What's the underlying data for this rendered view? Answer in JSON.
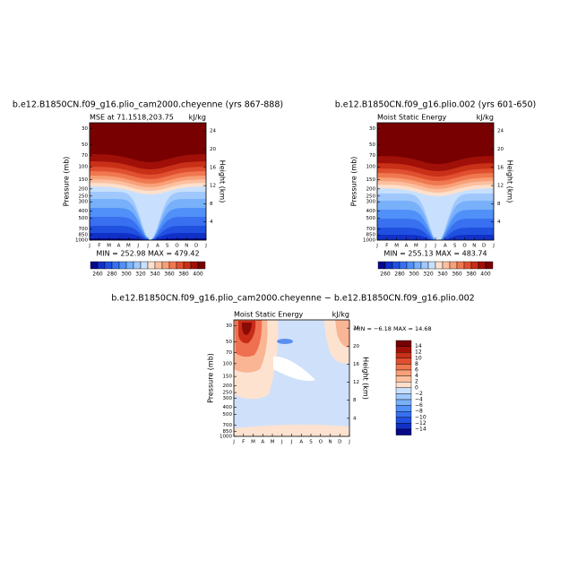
{
  "panels": [
    {
      "title": "b.e12.B1850CN.f09_g16.plio_cam2000.cheyenne (yrs 867-888)",
      "left_label": "MSE at 71.1518,203.75",
      "right_label": "kJ/kg",
      "ylabel": "Pressure (mb)",
      "y2label": "Height (km)",
      "stats": "MIN = 252.98  MAX = 479.42",
      "colorbar": [
        "260",
        "280",
        "300",
        "320",
        "340",
        "360",
        "380",
        "400"
      ]
    },
    {
      "title": "b.e12.B1850CN.f09_g16.plio.002 (yrs 601-650)",
      "left_label": "Moist Static Energy",
      "right_label": "kJ/kg",
      "ylabel": "Pressure (mb)",
      "y2label": "Height (km)",
      "stats": "MIN = 255.13  MAX = 483.74",
      "colorbar": [
        "260",
        "280",
        "300",
        "320",
        "340",
        "360",
        "380",
        "400"
      ]
    },
    {
      "title": "b.e12.B1850CN.f09_g16.plio_cam2000.cheyenne − b.e12.B1850CN.f09_g16.plio.002",
      "left_label": "Moist Static Energy",
      "right_label": "kJ/kg",
      "ylabel": "Pressure (mb)",
      "y2label": "Height (km)",
      "stats": "MIN =  −6.18  MAX =  14.68",
      "colorbar": [
        "14",
        "12",
        "10",
        "8",
        "6",
        "4",
        "2",
        "0",
        "−2",
        "−4",
        "−6",
        "−8",
        "−10",
        "−12",
        "−14"
      ]
    }
  ],
  "ylim": [
    1000,
    25
  ],
  "pressure_ticks": [
    30,
    50,
    70,
    100,
    150,
    200,
    250,
    300,
    400,
    500,
    700,
    850,
    1000
  ],
  "height_ticks": [
    24,
    20,
    16,
    12,
    8,
    4
  ],
  "months": [
    "J",
    "F",
    "M",
    "A",
    "M",
    "J",
    "J",
    "A",
    "S",
    "O",
    "N",
    "D",
    "J"
  ]
}
